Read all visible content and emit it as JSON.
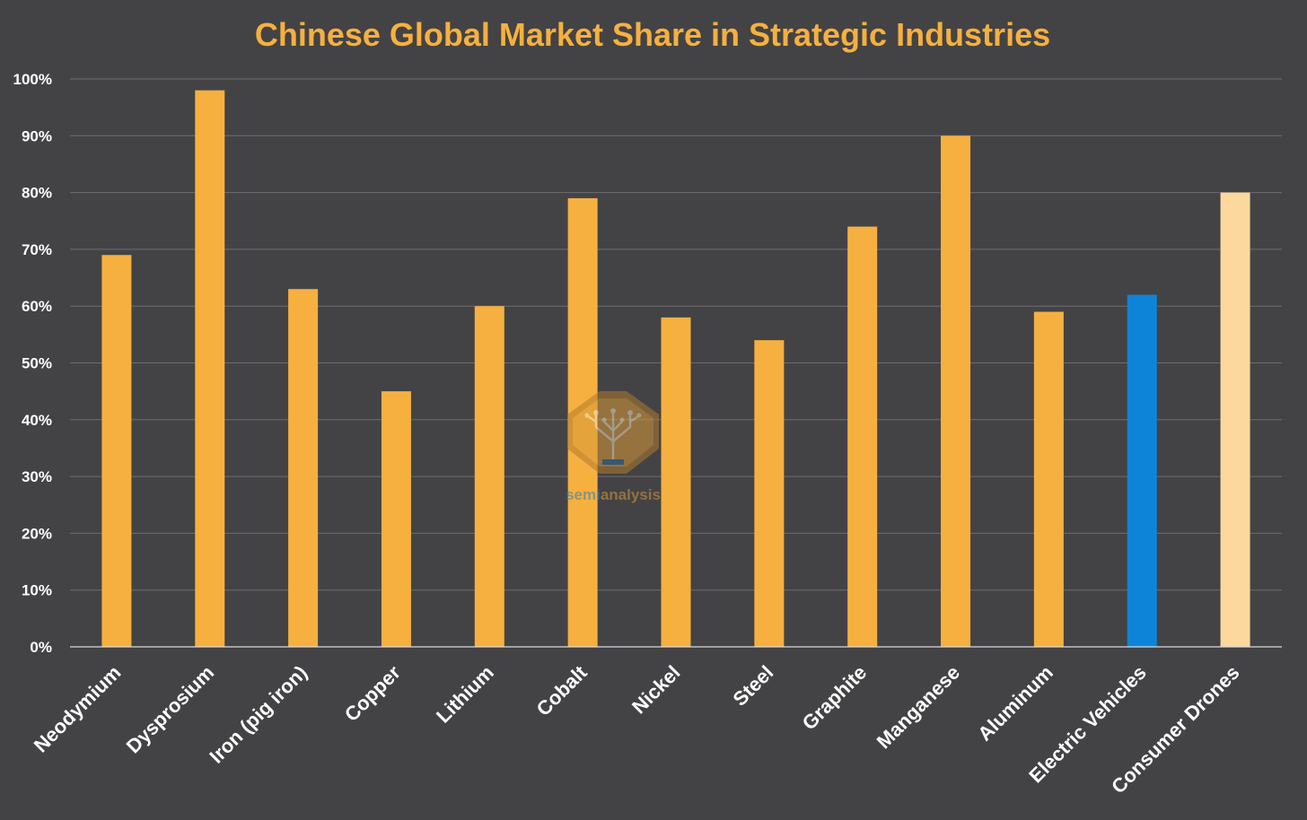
{
  "colors": {
    "background": "#434345",
    "title": "#F6B040",
    "axis_text": "#FFFFFF",
    "gridline": "#6E6E70",
    "bar_default": "#F6B040",
    "bar_highlight_blue": "#0E84D8",
    "bar_highlight_light": "#FCD89E"
  },
  "watermark": {
    "text_part1": "semi",
    "text_part2": "analysis",
    "logo_icon": "tree-circuit-octagon-icon"
  },
  "chart_data": {
    "type": "bar",
    "title": "Chinese Global Market Share in Strategic Industries",
    "xlabel": "",
    "ylabel": "",
    "ylim": [
      0,
      100
    ],
    "yticks": [
      0,
      10,
      20,
      30,
      40,
      50,
      60,
      70,
      80,
      90,
      100
    ],
    "ytick_labels": [
      "0%",
      "10%",
      "20%",
      "30%",
      "40%",
      "50%",
      "60%",
      "70%",
      "80%",
      "90%",
      "100%"
    ],
    "grid": true,
    "legend": "none",
    "categories": [
      "Neodymium",
      "Dysprosium",
      "Iron (pig iron)",
      "Copper",
      "Lithium",
      "Cobalt",
      "Nickel",
      "Steel",
      "Graphite",
      "Manganese",
      "Aluminum",
      "Electric Vehicles",
      "Consumer Drones"
    ],
    "values": [
      69,
      98,
      63,
      45,
      60,
      79,
      58,
      54,
      74,
      90,
      59,
      62,
      80
    ],
    "bar_colors": [
      "#F6B040",
      "#F6B040",
      "#F6B040",
      "#F6B040",
      "#F6B040",
      "#F6B040",
      "#F6B040",
      "#F6B040",
      "#F6B040",
      "#F6B040",
      "#F6B040",
      "#0E84D8",
      "#FCD89E"
    ]
  }
}
